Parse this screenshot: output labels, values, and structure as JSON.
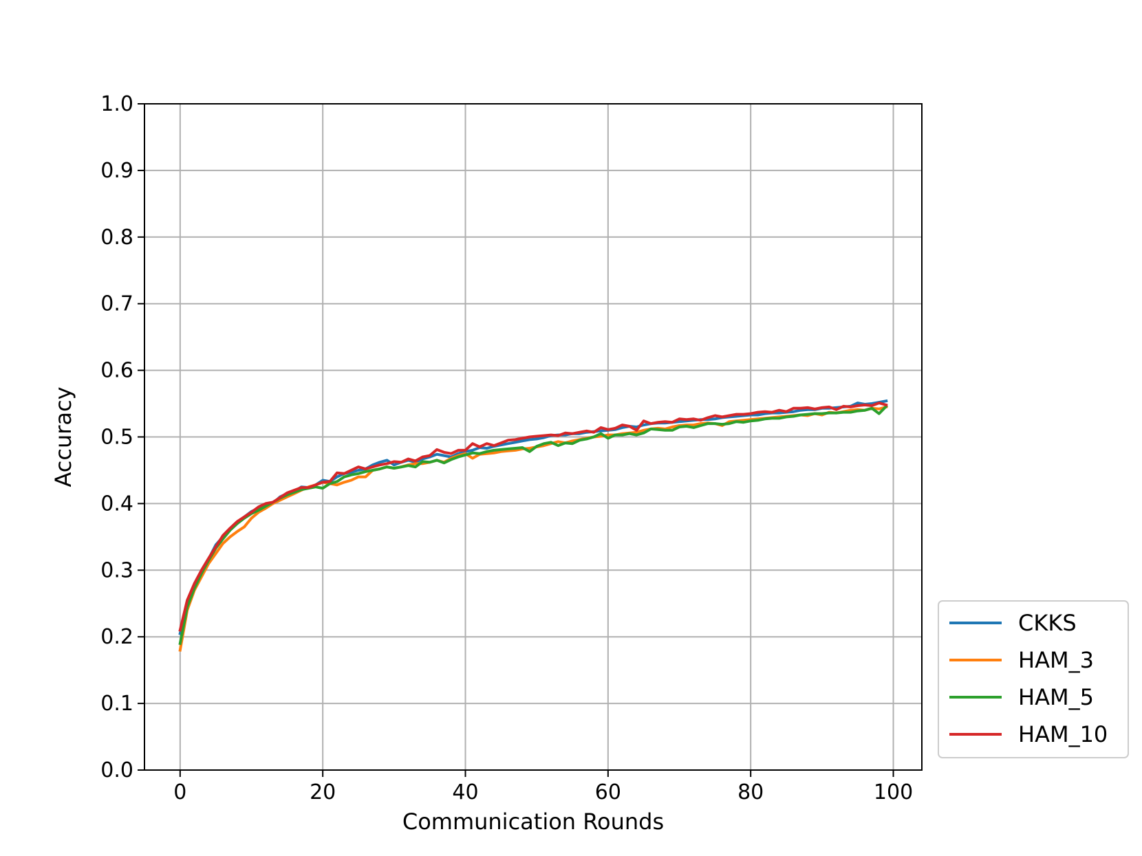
{
  "chart_data": {
    "type": "line",
    "title": "",
    "xlabel": "Communication Rounds",
    "ylabel": "Accuracy",
    "xlim": [
      -5,
      104
    ],
    "ylim": [
      0.0,
      1.0
    ],
    "xticks": [
      0,
      20,
      40,
      60,
      80,
      100
    ],
    "yticks": [
      0.0,
      0.1,
      0.2,
      0.3,
      0.4,
      0.5,
      0.6,
      0.7,
      0.8,
      0.9,
      1.0
    ],
    "xtick_labels": [
      "0",
      "20",
      "40",
      "60",
      "80",
      "100"
    ],
    "ytick_labels": [
      "0.0",
      "0.1",
      "0.2",
      "0.3",
      "0.4",
      "0.5",
      "0.6",
      "0.7",
      "0.8",
      "0.9",
      "1.0"
    ],
    "grid": true,
    "legend_position": "outside-lower-right",
    "x": [
      0,
      1,
      2,
      3,
      4,
      5,
      6,
      7,
      8,
      9,
      10,
      11,
      12,
      13,
      14,
      15,
      16,
      17,
      18,
      19,
      20,
      21,
      22,
      23,
      24,
      25,
      26,
      27,
      28,
      29,
      30,
      31,
      32,
      33,
      34,
      35,
      36,
      37,
      38,
      39,
      40,
      41,
      42,
      43,
      44,
      45,
      46,
      47,
      48,
      49,
      50,
      51,
      52,
      53,
      54,
      55,
      56,
      57,
      58,
      59,
      60,
      61,
      62,
      63,
      64,
      65,
      66,
      67,
      68,
      69,
      70,
      71,
      72,
      73,
      74,
      75,
      76,
      77,
      78,
      79,
      80,
      81,
      82,
      83,
      84,
      85,
      86,
      87,
      88,
      89,
      90,
      91,
      92,
      93,
      94,
      95,
      96,
      97,
      98,
      99
    ],
    "series": [
      {
        "name": "CKKS",
        "color": "#1f77b4",
        "values": [
          0.205,
          0.25,
          0.275,
          0.297,
          0.317,
          0.338,
          0.35,
          0.362,
          0.372,
          0.38,
          0.388,
          0.393,
          0.398,
          0.4,
          0.41,
          0.415,
          0.418,
          0.425,
          0.424,
          0.428,
          0.435,
          0.433,
          0.44,
          0.445,
          0.447,
          0.45,
          0.452,
          0.458,
          0.462,
          0.465,
          0.458,
          0.462,
          0.465,
          0.462,
          0.467,
          0.47,
          0.474,
          0.472,
          0.47,
          0.475,
          0.478,
          0.48,
          0.484,
          0.483,
          0.486,
          0.488,
          0.49,
          0.492,
          0.494,
          0.496,
          0.497,
          0.499,
          0.502,
          0.503,
          0.503,
          0.505,
          0.505,
          0.507,
          0.508,
          0.509,
          0.51,
          0.511,
          0.514,
          0.516,
          0.515,
          0.518,
          0.52,
          0.521,
          0.521,
          0.522,
          0.523,
          0.524,
          0.525,
          0.526,
          0.526,
          0.527,
          0.529,
          0.53,
          0.531,
          0.532,
          0.533,
          0.533,
          0.535,
          0.536,
          0.536,
          0.537,
          0.538,
          0.54,
          0.541,
          0.541,
          0.543,
          0.543,
          0.544,
          0.545,
          0.546,
          0.551,
          0.549,
          0.55,
          0.552,
          0.554
        ]
      },
      {
        "name": "HAM_3",
        "color": "#ff7f0e",
        "values": [
          0.18,
          0.24,
          0.27,
          0.29,
          0.31,
          0.325,
          0.34,
          0.35,
          0.358,
          0.365,
          0.378,
          0.387,
          0.393,
          0.4,
          0.405,
          0.41,
          0.415,
          0.42,
          0.425,
          0.428,
          0.432,
          0.43,
          0.428,
          0.432,
          0.435,
          0.44,
          0.44,
          0.45,
          0.452,
          0.455,
          0.453,
          0.455,
          0.458,
          0.46,
          0.46,
          0.462,
          0.465,
          0.462,
          0.468,
          0.472,
          0.475,
          0.468,
          0.474,
          0.475,
          0.476,
          0.478,
          0.479,
          0.48,
          0.482,
          0.483,
          0.485,
          0.487,
          0.49,
          0.493,
          0.491,
          0.494,
          0.496,
          0.498,
          0.5,
          0.501,
          0.503,
          0.503,
          0.505,
          0.506,
          0.507,
          0.51,
          0.512,
          0.513,
          0.512,
          0.515,
          0.517,
          0.518,
          0.518,
          0.52,
          0.521,
          0.52,
          0.517,
          0.523,
          0.524,
          0.525,
          0.526,
          0.527,
          0.528,
          0.529,
          0.53,
          0.531,
          0.532,
          0.533,
          0.532,
          0.535,
          0.533,
          0.537,
          0.536,
          0.538,
          0.54,
          0.541,
          0.54,
          0.543,
          0.542,
          0.545
        ]
      },
      {
        "name": "HAM_5",
        "color": "#2ca02c",
        "values": [
          0.19,
          0.245,
          0.273,
          0.295,
          0.315,
          0.333,
          0.347,
          0.36,
          0.37,
          0.378,
          0.385,
          0.39,
          0.396,
          0.402,
          0.408,
          0.413,
          0.417,
          0.421,
          0.423,
          0.425,
          0.423,
          0.43,
          0.433,
          0.44,
          0.443,
          0.445,
          0.448,
          0.45,
          0.452,
          0.455,
          0.453,
          0.455,
          0.457,
          0.455,
          0.463,
          0.462,
          0.465,
          0.461,
          0.466,
          0.47,
          0.473,
          0.476,
          0.475,
          0.478,
          0.48,
          0.481,
          0.482,
          0.483,
          0.484,
          0.478,
          0.486,
          0.49,
          0.492,
          0.487,
          0.491,
          0.49,
          0.495,
          0.497,
          0.5,
          0.505,
          0.498,
          0.503,
          0.503,
          0.505,
          0.503,
          0.506,
          0.512,
          0.511,
          0.51,
          0.51,
          0.515,
          0.516,
          0.514,
          0.517,
          0.52,
          0.52,
          0.519,
          0.52,
          0.523,
          0.522,
          0.524,
          0.525,
          0.527,
          0.528,
          0.528,
          0.53,
          0.531,
          0.533,
          0.534,
          0.535,
          0.535,
          0.536,
          0.536,
          0.537,
          0.537,
          0.539,
          0.54,
          0.543,
          0.535,
          0.546
        ]
      },
      {
        "name": "HAM_10",
        "color": "#d62728",
        "values": [
          0.21,
          0.255,
          0.28,
          0.3,
          0.318,
          0.335,
          0.352,
          0.363,
          0.373,
          0.38,
          0.387,
          0.395,
          0.4,
          0.402,
          0.409,
          0.416,
          0.42,
          0.424,
          0.424,
          0.428,
          0.432,
          0.433,
          0.446,
          0.445,
          0.45,
          0.455,
          0.452,
          0.455,
          0.458,
          0.46,
          0.463,
          0.462,
          0.467,
          0.464,
          0.47,
          0.472,
          0.481,
          0.477,
          0.475,
          0.48,
          0.48,
          0.49,
          0.485,
          0.49,
          0.487,
          0.491,
          0.495,
          0.496,
          0.498,
          0.5,
          0.501,
          0.502,
          0.503,
          0.502,
          0.506,
          0.505,
          0.507,
          0.509,
          0.507,
          0.514,
          0.511,
          0.513,
          0.518,
          0.516,
          0.51,
          0.524,
          0.52,
          0.522,
          0.523,
          0.522,
          0.527,
          0.526,
          0.527,
          0.525,
          0.529,
          0.532,
          0.53,
          0.532,
          0.534,
          0.534,
          0.535,
          0.537,
          0.538,
          0.537,
          0.54,
          0.538,
          0.543,
          0.543,
          0.544,
          0.542,
          0.544,
          0.545,
          0.541,
          0.546,
          0.545,
          0.547,
          0.548,
          0.547,
          0.551,
          0.548
        ]
      }
    ]
  }
}
